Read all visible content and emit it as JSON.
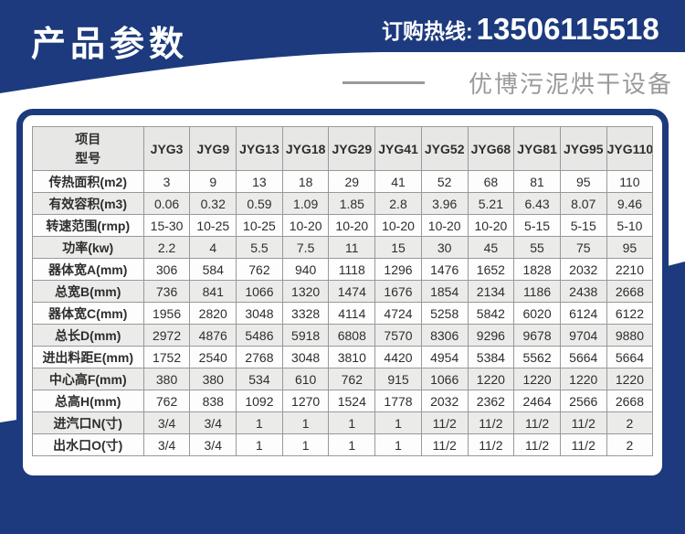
{
  "colors": {
    "primary_blue": "#1c3a7d",
    "table_border": "#97999b",
    "header_row_gray": "#e7e7e5",
    "alt_row_gray": "#ebebe9",
    "tagline_gray": "#9a9a9a"
  },
  "header": {
    "title": "产品参数",
    "hotline_label": "订购热线:",
    "hotline_number": "13506115518",
    "tagline": "优博污泥烘干设备"
  },
  "table": {
    "corner": {
      "line1": "项目",
      "line2": "型号"
    },
    "models": [
      "JYG3",
      "JYG9",
      "JYG13",
      "JYG18",
      "JYG29",
      "JYG41",
      "JYG52",
      "JYG68",
      "JYG81",
      "JYG95",
      "JYG110"
    ],
    "rows": [
      {
        "label": "传热面积(m2)",
        "values": [
          "3",
          "9",
          "13",
          "18",
          "29",
          "41",
          "52",
          "68",
          "81",
          "95",
          "110"
        ]
      },
      {
        "label": "有效容积(m3)",
        "values": [
          "0.06",
          "0.32",
          "0.59",
          "1.09",
          "1.85",
          "2.8",
          "3.96",
          "5.21",
          "6.43",
          "8.07",
          "9.46"
        ]
      },
      {
        "label": "转速范围(rmp)",
        "values": [
          "15-30",
          "10-25",
          "10-25",
          "10-20",
          "10-20",
          "10-20",
          "10-20",
          "10-20",
          "5-15",
          "5-15",
          "5-10"
        ]
      },
      {
        "label": "功率(kw)",
        "values": [
          "2.2",
          "4",
          "5.5",
          "7.5",
          "11",
          "15",
          "30",
          "45",
          "55",
          "75",
          "95"
        ]
      },
      {
        "label": "器体宽A(mm)",
        "values": [
          "306",
          "584",
          "762",
          "940",
          "1118",
          "1296",
          "1476",
          "1652",
          "1828",
          "2032",
          "2210"
        ]
      },
      {
        "label": "总宽B(mm)",
        "values": [
          "736",
          "841",
          "1066",
          "1320",
          "1474",
          "1676",
          "1854",
          "2134",
          "1186",
          "2438",
          "2668"
        ]
      },
      {
        "label": "器体宽C(mm)",
        "values": [
          "1956",
          "2820",
          "3048",
          "3328",
          "4114",
          "4724",
          "5258",
          "5842",
          "6020",
          "6124",
          "6122"
        ]
      },
      {
        "label": "总长D(mm)",
        "values": [
          "2972",
          "4876",
          "5486",
          "5918",
          "6808",
          "7570",
          "8306",
          "9296",
          "9678",
          "9704",
          "9880"
        ]
      },
      {
        "label": "进出料距E(mm)",
        "values": [
          "1752",
          "2540",
          "2768",
          "3048",
          "3810",
          "4420",
          "4954",
          "5384",
          "5562",
          "5664",
          "5664"
        ]
      },
      {
        "label": "中心高F(mm)",
        "values": [
          "380",
          "380",
          "534",
          "610",
          "762",
          "915",
          "1066",
          "1220",
          "1220",
          "1220",
          "1220"
        ]
      },
      {
        "label": "总高H(mm)",
        "values": [
          "762",
          "838",
          "1092",
          "1270",
          "1524",
          "1778",
          "2032",
          "2362",
          "2464",
          "2566",
          "2668"
        ]
      },
      {
        "label": "进汽口N(寸)",
        "values": [
          "3/4",
          "3/4",
          "1",
          "1",
          "1",
          "1",
          "11/2",
          "11/2",
          "11/2",
          "11/2",
          "2"
        ]
      },
      {
        "label": "出水口O(寸)",
        "values": [
          "3/4",
          "3/4",
          "1",
          "1",
          "1",
          "1",
          "11/2",
          "11/2",
          "11/2",
          "11/2",
          "2"
        ]
      }
    ]
  }
}
